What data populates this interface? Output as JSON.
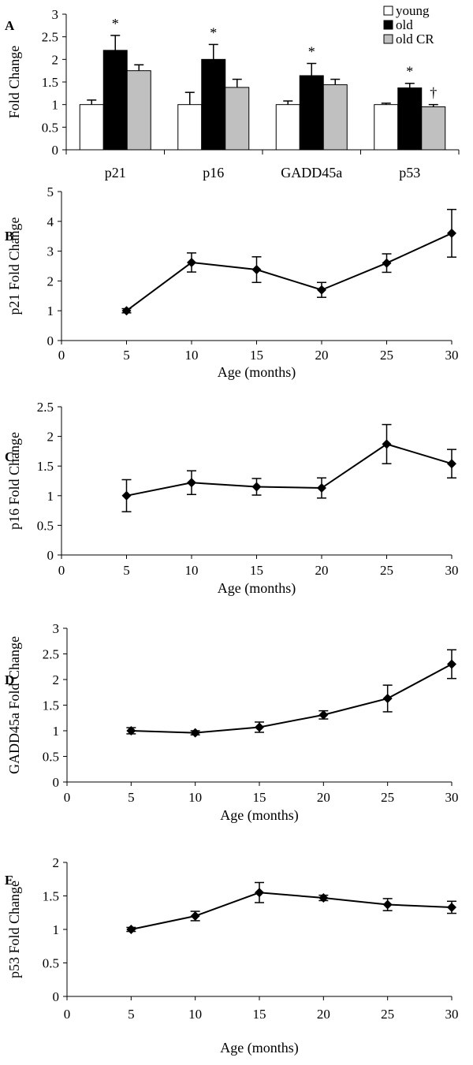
{
  "chart_data": [
    {
      "panel": "A",
      "type": "bar",
      "title": "",
      "ylabel": "Fold Change",
      "xlabel": "",
      "ylim": [
        0,
        3
      ],
      "yticks": [
        "0",
        "0.5",
        "1",
        "1.5",
        "2",
        "2.5",
        "3"
      ],
      "categories": [
        "p21",
        "p16",
        "GADD45a",
        "p53"
      ],
      "series": [
        {
          "name": "young",
          "color": "#ffffff",
          "values": [
            1.0,
            1.0,
            1.0,
            1.0
          ],
          "errors": [
            0.1,
            0.27,
            0.08,
            0.03
          ]
        },
        {
          "name": "old",
          "color": "#000000",
          "values": [
            2.2,
            2.0,
            1.64,
            1.37
          ],
          "errors": [
            0.33,
            0.33,
            0.27,
            0.1
          ]
        },
        {
          "name": "old CR",
          "color": "#c0c0c0",
          "values": [
            1.75,
            1.38,
            1.44,
            0.95
          ],
          "errors": [
            0.13,
            0.18,
            0.12,
            0.05
          ]
        }
      ],
      "annotations": [
        {
          "category": "p21",
          "series": "old",
          "text": "*"
        },
        {
          "category": "p16",
          "series": "old",
          "text": "*"
        },
        {
          "category": "GADD45a",
          "series": "old",
          "text": "*"
        },
        {
          "category": "p53",
          "series": "old",
          "text": "*"
        },
        {
          "category": "p53",
          "series": "old CR",
          "text": "†"
        }
      ],
      "legend": "top-right"
    },
    {
      "panel": "B",
      "type": "line",
      "ylabel": "p21 Fold Change",
      "xlabel": "Age (months)",
      "xlim": [
        0,
        30
      ],
      "ylim": [
        0,
        5
      ],
      "xticks": [
        "0",
        "5",
        "10",
        "15",
        "20",
        "25",
        "30"
      ],
      "yticks": [
        "0",
        "1",
        "2",
        "3",
        "4",
        "5"
      ],
      "x": [
        5,
        10,
        15,
        20,
        25,
        30
      ],
      "y": [
        1.0,
        2.62,
        2.38,
        1.7,
        2.6,
        3.6
      ],
      "errors": [
        0.07,
        0.32,
        0.43,
        0.25,
        0.31,
        0.8
      ]
    },
    {
      "panel": "C",
      "type": "line",
      "ylabel": "p16 Fold Change",
      "xlabel": "Age (months)",
      "xlim": [
        0,
        30
      ],
      "ylim": [
        0,
        2.5
      ],
      "xticks": [
        "0",
        "5",
        "10",
        "15",
        "20",
        "25",
        "30"
      ],
      "yticks": [
        "0",
        "0.5",
        "1",
        "1.5",
        "2",
        "2.5"
      ],
      "x": [
        5,
        10,
        15,
        20,
        25,
        30
      ],
      "y": [
        1.0,
        1.22,
        1.15,
        1.13,
        1.87,
        1.54
      ],
      "errors": [
        0.27,
        0.2,
        0.14,
        0.17,
        0.33,
        0.24
      ]
    },
    {
      "panel": "D",
      "type": "line",
      "ylabel": "GADD45a Fold Change",
      "xlabel": "Age (months)",
      "xlim": [
        0,
        30
      ],
      "ylim": [
        0,
        3
      ],
      "xticks": [
        "0",
        "5",
        "10",
        "15",
        "20",
        "25",
        "30"
      ],
      "yticks": [
        "0",
        "0.5",
        "1",
        "1.5",
        "2",
        "2.5",
        "3"
      ],
      "x": [
        5,
        10,
        15,
        20,
        25,
        30
      ],
      "y": [
        1.0,
        0.96,
        1.07,
        1.31,
        1.63,
        2.3
      ],
      "errors": [
        0.06,
        0.04,
        0.1,
        0.08,
        0.26,
        0.28
      ]
    },
    {
      "panel": "E",
      "type": "line",
      "ylabel": "p53 Fold Change",
      "xlabel": "Age (months)",
      "xlim": [
        0,
        30
      ],
      "ylim": [
        0,
        2
      ],
      "xticks": [
        "0",
        "5",
        "10",
        "15",
        "20",
        "25",
        "30"
      ],
      "yticks": [
        "0",
        "0.5",
        "1",
        "1.5",
        "2"
      ],
      "x": [
        5,
        10,
        15,
        20,
        25,
        30
      ],
      "y": [
        1.0,
        1.2,
        1.55,
        1.47,
        1.37,
        1.33
      ],
      "errors": [
        0.03,
        0.07,
        0.15,
        0.04,
        0.09,
        0.09
      ]
    }
  ]
}
